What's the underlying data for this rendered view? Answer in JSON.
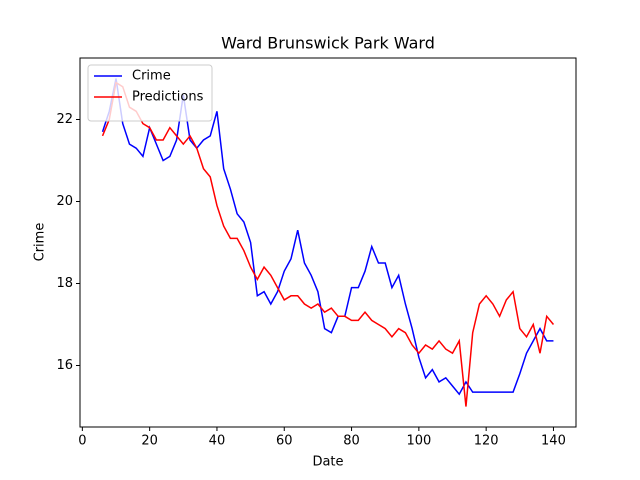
{
  "chart_data": {
    "type": "line",
    "title": "Ward Brunswick Park Ward",
    "xlabel": "Date",
    "ylabel": "Crime",
    "x": [
      6,
      8,
      10,
      12,
      14,
      16,
      18,
      20,
      22,
      24,
      26,
      28,
      30,
      32,
      34,
      36,
      38,
      40,
      42,
      44,
      46,
      48,
      50,
      52,
      54,
      56,
      58,
      60,
      62,
      64,
      66,
      68,
      70,
      72,
      74,
      76,
      78,
      80,
      82,
      84,
      86,
      88,
      90,
      92,
      94,
      96,
      98,
      100,
      102,
      104,
      106,
      108,
      110,
      112,
      114,
      116,
      118,
      120,
      122,
      124,
      126,
      128,
      130,
      132,
      134,
      136,
      138,
      140
    ],
    "series": [
      {
        "name": "Crime",
        "color": "#0000ff",
        "values": [
          21.7,
          22.2,
          23.0,
          21.9,
          21.4,
          21.3,
          21.1,
          21.8,
          21.4,
          21.0,
          21.1,
          21.5,
          22.6,
          21.5,
          21.3,
          21.5,
          21.6,
          22.2,
          20.8,
          20.3,
          19.7,
          19.5,
          19.0,
          17.7,
          17.8,
          17.5,
          17.8,
          18.3,
          18.6,
          19.3,
          18.5,
          18.2,
          17.8,
          16.9,
          16.8,
          17.2,
          17.2,
          17.9,
          17.9,
          18.3,
          18.9,
          18.5,
          18.5,
          17.9,
          18.2,
          17.5,
          16.9,
          16.2,
          15.7,
          15.9,
          15.6,
          15.7,
          15.5,
          15.3,
          15.6,
          15.35,
          15.35,
          15.35,
          15.35,
          15.35,
          15.35,
          15.35,
          15.8,
          16.3,
          16.6,
          16.9,
          16.6,
          16.6
        ]
      },
      {
        "name": "Predictions",
        "color": "#ff0000",
        "values": [
          21.6,
          22.0,
          22.9,
          22.8,
          22.3,
          22.2,
          21.9,
          21.8,
          21.5,
          21.5,
          21.8,
          21.6,
          21.4,
          21.6,
          21.3,
          20.8,
          20.6,
          19.9,
          19.4,
          19.1,
          19.1,
          18.8,
          18.4,
          18.1,
          18.4,
          18.2,
          17.9,
          17.6,
          17.7,
          17.7,
          17.5,
          17.4,
          17.5,
          17.3,
          17.4,
          17.2,
          17.2,
          17.1,
          17.1,
          17.3,
          17.1,
          17.0,
          16.9,
          16.7,
          16.9,
          16.8,
          16.5,
          16.3,
          16.5,
          16.4,
          16.6,
          16.4,
          16.3,
          16.6,
          15.0,
          16.8,
          17.5,
          17.7,
          17.5,
          17.2,
          17.6,
          17.8,
          16.9,
          16.7,
          17.0,
          16.3,
          17.2,
          17.0
        ]
      }
    ],
    "xlim": [
      -0.7,
      146.7
    ],
    "xticks": [
      0,
      20,
      40,
      60,
      80,
      100,
      120,
      140
    ],
    "ylim": [
      14.5,
      23.5
    ],
    "yticks": [
      16,
      18,
      20,
      22
    ],
    "grid": false,
    "legend": "upper-left"
  }
}
